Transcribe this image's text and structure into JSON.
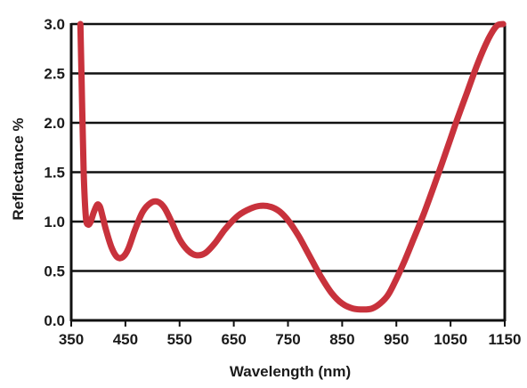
{
  "chart_data": {
    "type": "line",
    "title": "",
    "xlabel": "Wavelength (nm)",
    "ylabel": "Reflectance %",
    "xlim": [
      350,
      1150
    ],
    "ylim": [
      0.0,
      3.0
    ],
    "x_ticks": [
      350,
      450,
      550,
      650,
      750,
      850,
      950,
      1050,
      1150
    ],
    "y_ticks": [
      0.0,
      0.5,
      1.0,
      1.5,
      2.0,
      2.5,
      3.0
    ],
    "x_tick_labels": [
      "350",
      "450",
      "550",
      "650",
      "750",
      "850",
      "950",
      "1050",
      "1150"
    ],
    "y_tick_labels": [
      "0.0",
      "0.5",
      "1.0",
      "1.5",
      "2.0",
      "2.5",
      "3.0"
    ],
    "grid": "horizontal",
    "legend": "none",
    "line_color": "#c8323c",
    "series": [
      {
        "x": [
          367,
          370,
          373,
          377,
          381,
          386,
          392,
          398,
          403,
          408,
          415,
          425,
          435,
          445,
          455,
          468,
          482,
          497,
          510,
          522,
          535,
          550,
          565,
          580,
          597,
          615,
          635,
          658,
          680,
          700,
          718,
          735,
          752,
          770,
          790,
          810,
          830,
          850,
          870,
          890,
          905,
          920,
          935,
          950,
          965,
          980,
          1000,
          1020,
          1040,
          1060,
          1080,
          1100,
          1120,
          1135,
          1147
        ],
        "y": [
          3.0,
          2.2,
          1.5,
          1.05,
          0.97,
          1.0,
          1.1,
          1.17,
          1.15,
          1.05,
          0.9,
          0.73,
          0.64,
          0.64,
          0.72,
          0.92,
          1.1,
          1.19,
          1.2,
          1.14,
          1.0,
          0.82,
          0.71,
          0.66,
          0.68,
          0.78,
          0.93,
          1.06,
          1.13,
          1.16,
          1.15,
          1.1,
          1.0,
          0.85,
          0.65,
          0.45,
          0.28,
          0.17,
          0.12,
          0.11,
          0.12,
          0.17,
          0.26,
          0.42,
          0.6,
          0.8,
          1.07,
          1.37,
          1.68,
          2.0,
          2.3,
          2.6,
          2.85,
          2.98,
          3.0
        ]
      }
    ]
  }
}
